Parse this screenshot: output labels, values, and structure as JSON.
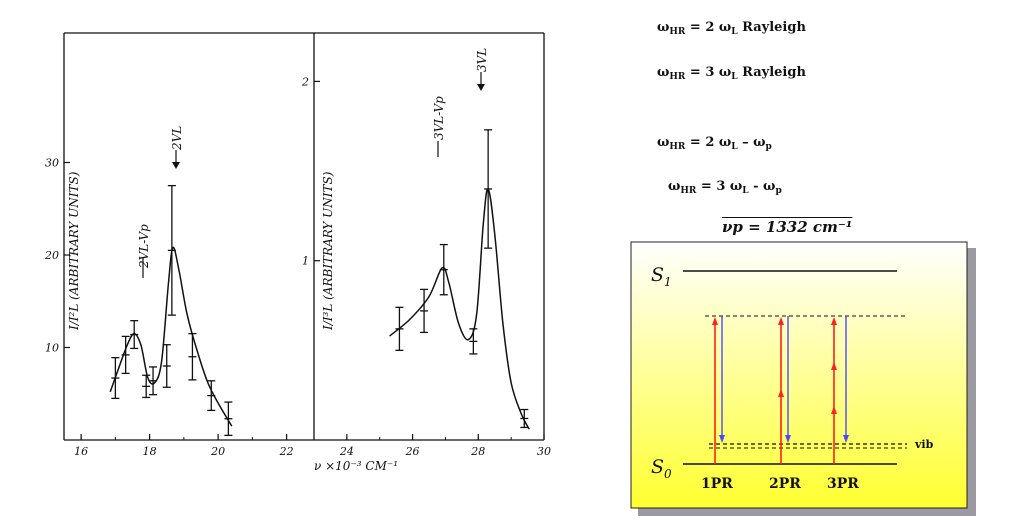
{
  "plot": {
    "y_label_left": "I/I²L (ARBITRARY UNITS)",
    "y_label_right": "I/I³L (ARBITRARY UNITS)",
    "x_label": "ν ×10⁻³ CM⁻¹",
    "annot_2vl_vp": "2VL-Vp",
    "annot_2vl": "2VL",
    "annot_3vl_vp": "3VL-Vp",
    "annot_3vl": "3VL"
  },
  "chart_data": [
    {
      "type": "line",
      "panel": "left",
      "xlim": [
        15.5,
        22.8
      ],
      "ylim": [
        0,
        44
      ],
      "x_ticks": [
        "16",
        "18",
        "20",
        "22"
      ],
      "y_ticks": [
        "10",
        "20",
        "30"
      ],
      "points": [
        {
          "x": 17.0,
          "y": 6.7,
          "err": 2.2
        },
        {
          "x": 17.3,
          "y": 9.2,
          "err": 2.0
        },
        {
          "x": 17.55,
          "y": 11.4,
          "err": 1.5
        },
        {
          "x": 17.9,
          "y": 5.8,
          "err": 1.2
        },
        {
          "x": 18.1,
          "y": 6.4,
          "err": 1.5
        },
        {
          "x": 18.5,
          "y": 8.0,
          "err": 2.3
        },
        {
          "x": 18.65,
          "y": 20.5,
          "err": 7.0
        },
        {
          "x": 19.25,
          "y": 9.0,
          "err": 2.5
        },
        {
          "x": 19.8,
          "y": 4.8,
          "err": 1.6
        },
        {
          "x": 20.3,
          "y": 2.3,
          "err": 1.8
        }
      ],
      "curve": [
        [
          16.85,
          5.2
        ],
        [
          17.1,
          7.8
        ],
        [
          17.35,
          10.3
        ],
        [
          17.55,
          11.5
        ],
        [
          17.75,
          10.2
        ],
        [
          17.95,
          6.7
        ],
        [
          18.15,
          6.2
        ],
        [
          18.35,
          8.5
        ],
        [
          18.55,
          17.0
        ],
        [
          18.68,
          20.8
        ],
        [
          18.85,
          18.5
        ],
        [
          19.1,
          13.5
        ],
        [
          19.4,
          9.5
        ],
        [
          19.7,
          6.2
        ],
        [
          20.0,
          4.0
        ],
        [
          20.4,
          1.5
        ]
      ]
    },
    {
      "type": "line",
      "panel": "right",
      "xlim": [
        23,
        30
      ],
      "ylim": [
        0,
        2.27
      ],
      "x_ticks": [
        "24",
        "26",
        "28",
        "30"
      ],
      "y_ticks": [
        "1",
        "2"
      ],
      "points": [
        {
          "x": 25.6,
          "y": 0.62,
          "err": 0.12
        },
        {
          "x": 26.35,
          "y": 0.72,
          "err": 0.12
        },
        {
          "x": 26.95,
          "y": 0.95,
          "err": 0.14
        },
        {
          "x": 27.85,
          "y": 0.55,
          "err": 0.07
        },
        {
          "x": 28.3,
          "y": 1.4,
          "err": 0.33
        },
        {
          "x": 29.4,
          "y": 0.12,
          "err": 0.05
        }
      ],
      "curve": [
        [
          25.3,
          0.58
        ],
        [
          25.9,
          0.67
        ],
        [
          26.5,
          0.8
        ],
        [
          26.9,
          0.96
        ],
        [
          27.1,
          0.88
        ],
        [
          27.4,
          0.65
        ],
        [
          27.7,
          0.56
        ],
        [
          27.95,
          0.7
        ],
        [
          28.15,
          1.2
        ],
        [
          28.3,
          1.4
        ],
        [
          28.5,
          1.15
        ],
        [
          28.75,
          0.65
        ],
        [
          29.0,
          0.32
        ],
        [
          29.3,
          0.15
        ],
        [
          29.55,
          0.06
        ]
      ]
    }
  ],
  "equations": {
    "eq1_main": "ω",
    "eq1_sub": "HR",
    "eq1_mid": " = 2 ω",
    "eq1_sub2": "L",
    "eq1_tail": "  Rayleigh",
    "eq2_main": "ω",
    "eq2_sub": "HR",
    "eq2_mid": " = 3 ω",
    "eq2_sub2": "L",
    "eq2_tail": "  Rayleigh",
    "eq3_main": "ω",
    "eq3_sub": "HR",
    "eq3_mid": " = 2 ω",
    "eq3_sub2": "L",
    "eq3_mid2": " – ω",
    "eq3_sub3": "p",
    "eq4_main": "ω",
    "eq4_sub": "HR",
    "eq4_mid": " = 3 ω",
    "eq4_sub2": "L",
    "eq4_mid2": " - ω",
    "eq4_sub3": "p",
    "nu_p": "νp = 1332 cm⁻¹"
  },
  "energy_diagram": {
    "s1": "S1",
    "s0": "S0",
    "vib": "vib",
    "labels": [
      "1PR",
      "2PR",
      "3PR"
    ],
    "colors": {
      "red": "#ff2020",
      "blue": "#4a4aff",
      "bg_top": "#ffffff",
      "bg_bottom": "#ffff30"
    }
  }
}
